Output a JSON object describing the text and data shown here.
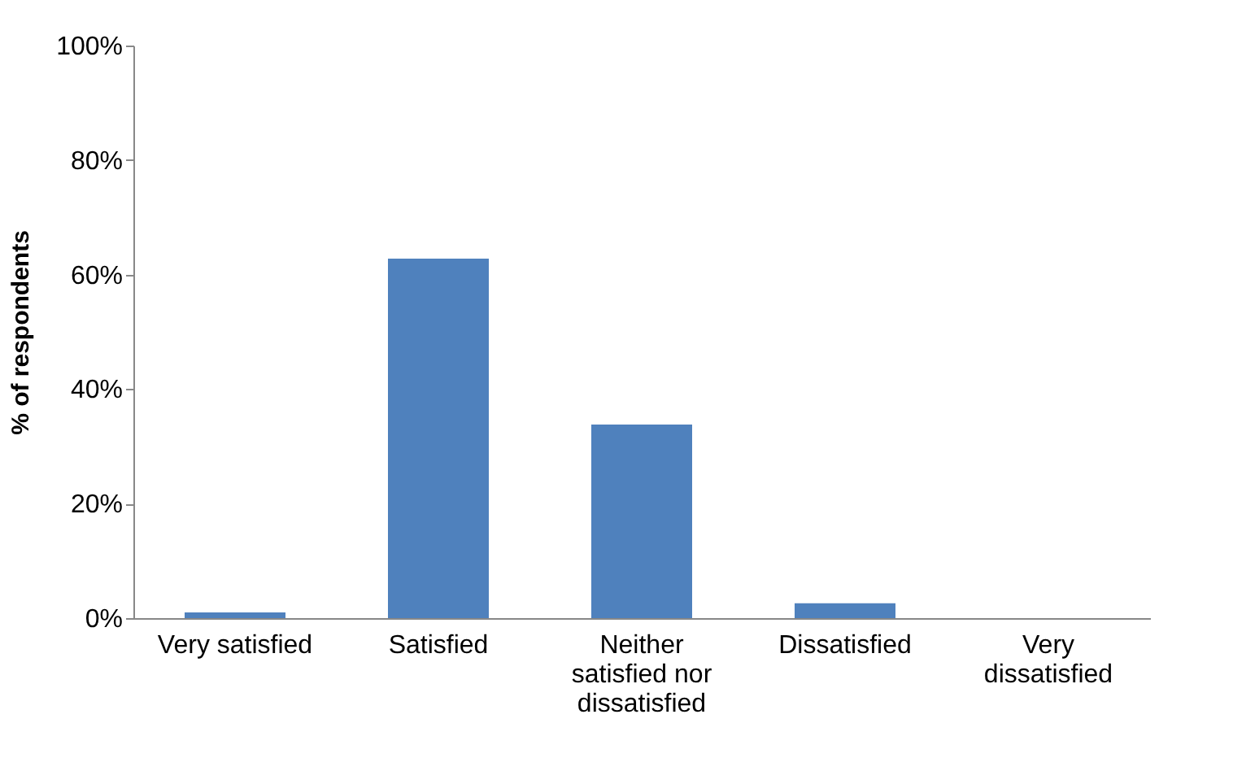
{
  "chart_data": {
    "type": "bar",
    "ylabel": "% of respondents",
    "categories": [
      "Very satisfied",
      "Satisfied",
      "Neither satisfied nor dissatisfied",
      "Dissatisfied",
      "Very dissatisfied"
    ],
    "values": [
      1,
      62.8,
      33.8,
      2.6,
      0
    ],
    "color": "#4f81bd",
    "ylim": [
      0,
      100
    ],
    "yticks": [
      {
        "value": 0,
        "label": "0%"
      },
      {
        "value": 20,
        "label": "20%"
      },
      {
        "value": 40,
        "label": "40%"
      },
      {
        "value": 60,
        "label": "60%"
      },
      {
        "value": 80,
        "label": "80%"
      },
      {
        "value": 100,
        "label": "100%"
      }
    ],
    "grid": false
  }
}
